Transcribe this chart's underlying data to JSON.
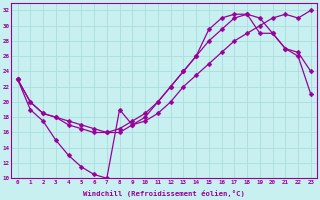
{
  "xlabel": "Windchill (Refroidissement éolien,°C)",
  "background_color": "#c8f0f0",
  "grid_color": "#aadddd",
  "line_color": "#990099",
  "xlim": [
    -0.5,
    23.5
  ],
  "ylim": [
    10,
    33
  ],
  "xticks": [
    0,
    1,
    2,
    3,
    4,
    5,
    6,
    7,
    8,
    9,
    10,
    11,
    12,
    13,
    14,
    15,
    16,
    17,
    18,
    19,
    20,
    21,
    22,
    23
  ],
  "yticks": [
    10,
    12,
    14,
    16,
    18,
    20,
    22,
    24,
    26,
    28,
    30,
    32
  ],
  "line1_x": [
    0,
    1,
    2,
    3,
    4,
    5,
    6,
    7,
    8,
    9,
    10,
    11,
    12,
    13,
    14,
    15,
    16,
    17,
    18,
    19,
    20,
    21,
    22,
    23
  ],
  "line1_y": [
    23,
    19,
    17.5,
    15,
    13,
    11.5,
    10.5,
    10,
    19,
    17,
    17.5,
    18.5,
    20,
    22,
    23.5,
    25,
    26.5,
    28,
    29,
    30,
    31,
    31.5,
    31,
    32
  ],
  "line2_x": [
    0,
    1,
    2,
    3,
    4,
    5,
    6,
    7,
    8,
    9,
    10,
    11,
    12,
    13,
    14,
    15,
    16,
    17,
    18,
    19,
    20,
    21,
    22,
    23
  ],
  "line2_y": [
    23,
    20,
    18.5,
    18,
    17,
    16.5,
    16,
    16,
    16.5,
    17.5,
    18.5,
    20,
    22,
    24,
    26,
    28,
    29.5,
    31,
    31.5,
    31,
    29,
    27,
    26.5,
    24
  ],
  "line3_x": [
    0,
    1,
    2,
    3,
    4,
    5,
    6,
    7,
    8,
    9,
    10,
    11,
    12,
    13,
    14,
    15,
    16,
    17,
    18,
    19,
    20,
    21,
    22,
    23
  ],
  "line3_y": [
    23,
    20,
    18.5,
    18,
    17.5,
    17,
    16.5,
    16,
    16,
    17,
    18,
    20,
    22,
    24,
    26,
    29.5,
    31,
    31.5,
    31.5,
    29,
    29,
    27,
    26,
    21
  ],
  "marker": "D",
  "markersize": 2.5,
  "linewidth": 0.9
}
